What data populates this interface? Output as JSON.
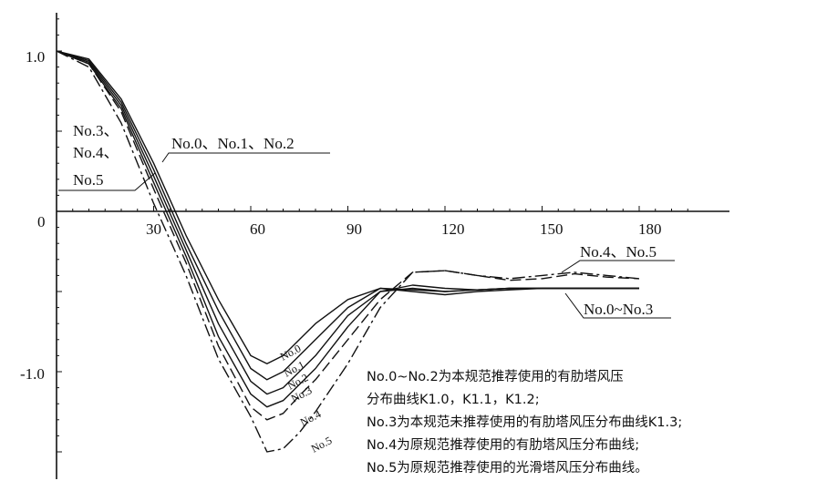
{
  "chart_data": {
    "type": "line",
    "title": "",
    "xlabel": "",
    "ylabel": "",
    "xlim": [
      0,
      205
    ],
    "ylim": [
      -1.55,
      1.25
    ],
    "x_ticks": [
      "30",
      "60",
      "90",
      "120",
      "150",
      "180"
    ],
    "y_ticks": [
      "1.0",
      "0",
      "-1.0"
    ],
    "series": [
      {
        "name": "No.0",
        "dash": "solid",
        "x": [
          0,
          10,
          20,
          30,
          40,
          50,
          60,
          65,
          70,
          75,
          80,
          90,
          100,
          110,
          120,
          130,
          140,
          150,
          160,
          170,
          180
        ],
        "y": [
          1.0,
          0.95,
          0.7,
          0.3,
          -0.15,
          -0.55,
          -0.9,
          -0.95,
          -0.9,
          -0.8,
          -0.7,
          -0.55,
          -0.48,
          -0.49,
          -0.5,
          -0.49,
          -0.48,
          -0.48,
          -0.48,
          -0.48,
          -0.48
        ]
      },
      {
        "name": "No.1",
        "dash": "solid",
        "x": [
          0,
          10,
          20,
          30,
          40,
          50,
          60,
          65,
          70,
          75,
          80,
          90,
          100,
          110,
          120,
          130,
          140,
          150,
          160,
          170,
          180
        ],
        "y": [
          1.0,
          0.94,
          0.68,
          0.26,
          -0.2,
          -0.62,
          -0.98,
          -1.05,
          -1.0,
          -0.9,
          -0.8,
          -0.6,
          -0.48,
          -0.5,
          -0.52,
          -0.5,
          -0.49,
          -0.48,
          -0.48,
          -0.48,
          -0.48
        ]
      },
      {
        "name": "No.2",
        "dash": "solid",
        "x": [
          0,
          10,
          20,
          30,
          40,
          50,
          60,
          65,
          70,
          75,
          80,
          90,
          100,
          110,
          120,
          130,
          140,
          150,
          160,
          170,
          180
        ],
        "y": [
          1.0,
          0.93,
          0.66,
          0.22,
          -0.24,
          -0.7,
          -1.06,
          -1.14,
          -1.1,
          -1.0,
          -0.9,
          -0.65,
          -0.5,
          -0.48,
          -0.5,
          -0.49,
          -0.48,
          -0.48,
          -0.48,
          -0.48,
          -0.48
        ]
      },
      {
        "name": "No.3",
        "dash": "solid",
        "x": [
          0,
          10,
          20,
          30,
          40,
          50,
          60,
          65,
          70,
          75,
          80,
          90,
          100,
          110,
          120,
          130,
          140,
          150,
          160,
          170,
          180
        ],
        "y": [
          1.0,
          0.92,
          0.64,
          0.18,
          -0.28,
          -0.78,
          -1.14,
          -1.22,
          -1.18,
          -1.08,
          -0.98,
          -0.72,
          -0.5,
          -0.46,
          -0.48,
          -0.49,
          -0.48,
          -0.48,
          -0.48,
          -0.48,
          -0.48
        ]
      },
      {
        "name": "No.4",
        "dash": "long-dash",
        "x": [
          0,
          10,
          20,
          30,
          40,
          50,
          60,
          65,
          70,
          75,
          80,
          90,
          100,
          110,
          120,
          130,
          140,
          150,
          160,
          170,
          180
        ],
        "y": [
          1.0,
          0.92,
          0.62,
          0.14,
          -0.32,
          -0.84,
          -1.22,
          -1.3,
          -1.26,
          -1.15,
          -1.05,
          -0.8,
          -0.55,
          -0.38,
          -0.37,
          -0.4,
          -0.43,
          -0.42,
          -0.39,
          -0.41,
          -0.42
        ]
      },
      {
        "name": "No.5",
        "dash": "dash-dot",
        "x": [
          0,
          10,
          20,
          30,
          40,
          50,
          60,
          65,
          70,
          75,
          80,
          90,
          100,
          110,
          120,
          130,
          140,
          150,
          160,
          170,
          180
        ],
        "y": [
          1.0,
          0.9,
          0.55,
          0.05,
          -0.4,
          -0.92,
          -1.28,
          -1.5,
          -1.48,
          -1.38,
          -1.25,
          -0.95,
          -0.6,
          -0.38,
          -0.37,
          -0.4,
          -0.42,
          -0.4,
          -0.38,
          -0.4,
          -0.42
        ]
      }
    ],
    "annotations": {
      "left_group": [
        "No.3、",
        "No.4、",
        "No.5"
      ],
      "top_group": "No.0、No.1、No.2",
      "right_top": "No.4、No.5",
      "right_bottom": "No.0~No.3"
    },
    "notes": [
      "No.0~No.2为本规范推荐使用的有肋塔风压",
      "分布曲线K1.0，K1.1，K1.2;",
      "No.3为本规范未推荐使用的有肋塔风压分布曲线K1.3;",
      "No.4为原规范推荐使用的有肋塔风压分布曲线;",
      "No.5为原规范推荐使用的光滑塔风压分布曲线。"
    ]
  }
}
